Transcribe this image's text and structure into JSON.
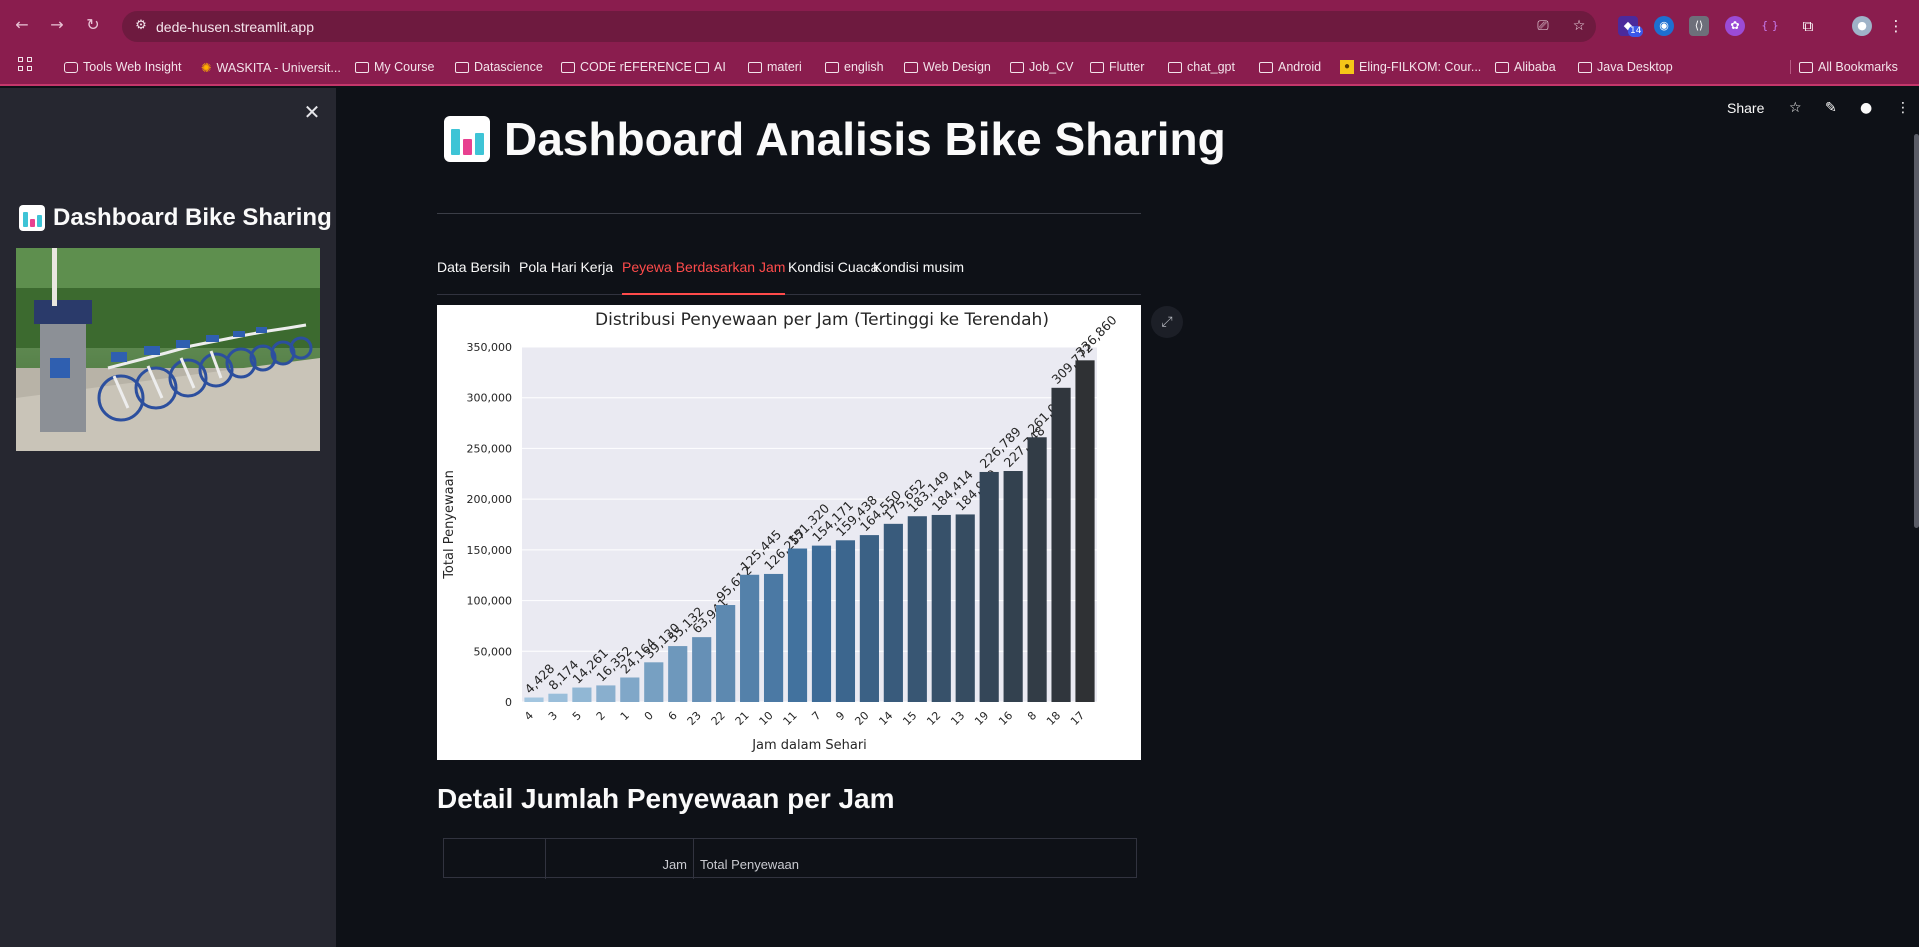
{
  "browser": {
    "url": "dede-husen.streamlit.app",
    "extension_badge": "14",
    "bookmarks": [
      {
        "label": "Tools Web Insight",
        "kind": "page"
      },
      {
        "label": "WASKITA - Universit...",
        "kind": "page"
      },
      {
        "label": "My Course",
        "kind": "folder"
      },
      {
        "label": "Datascience",
        "kind": "folder"
      },
      {
        "label": "CODE rEFERENCE",
        "kind": "folder"
      },
      {
        "label": "AI",
        "kind": "folder"
      },
      {
        "label": "materi",
        "kind": "folder"
      },
      {
        "label": "english",
        "kind": "folder"
      },
      {
        "label": "Web Design",
        "kind": "folder"
      },
      {
        "label": "Job_CV",
        "kind": "folder"
      },
      {
        "label": "Flutter",
        "kind": "folder"
      },
      {
        "label": "chat_gpt",
        "kind": "folder"
      },
      {
        "label": "Android",
        "kind": "folder"
      },
      {
        "label": "Eling-FILKOM: Cour...",
        "kind": "page"
      },
      {
        "label": "Alibaba",
        "kind": "folder"
      },
      {
        "label": "Java Desktop",
        "kind": "folder"
      }
    ],
    "all_bookmarks": "All Bookmarks"
  },
  "sidebar": {
    "title": "Dashboard Bike Sharing",
    "image": "bike-sharing-station-photo"
  },
  "toolbar": {
    "share": "Share"
  },
  "main": {
    "title": "Dashboard Analisis Bike Sharing",
    "tabs": [
      {
        "label": "Data Bersih",
        "active": false
      },
      {
        "label": "Pola Hari Kerja",
        "active": false
      },
      {
        "label": "Peyewa Berdasarkan Jam",
        "active": true
      },
      {
        "label": "Kondisi Cuaca",
        "active": false
      },
      {
        "label": "Kondisi musim",
        "active": false
      }
    ],
    "section_title": "Detail Jumlah Penyewaan per Jam",
    "table_headers": [
      "",
      "Jam",
      "Total Penyewaan"
    ]
  },
  "colors": {
    "chrome": "#8a1d4e",
    "accent": "#ff4b4b",
    "sidebar_bg": "#262730",
    "main_bg": "#0e1117",
    "bar_light": "#a3c6e0",
    "bar_dark": "#2f3134"
  },
  "chart_data": {
    "type": "bar",
    "title": "Distribusi Penyewaan per Jam (Tertinggi ke Terendah)",
    "xlabel": "Jam dalam Sehari",
    "ylabel": "Total Penyewaan",
    "ylim": [
      0,
      350000
    ],
    "yticks": [
      "0",
      "50,000",
      "100,000",
      "150,000",
      "200,000",
      "250,000",
      "300,000",
      "350,000"
    ],
    "grid": true,
    "categories": [
      "4",
      "3",
      "5",
      "2",
      "1",
      "0",
      "6",
      "23",
      "22",
      "21",
      "10",
      "11",
      "7",
      "9",
      "20",
      "14",
      "15",
      "12",
      "13",
      "19",
      "16",
      "8",
      "18",
      "17"
    ],
    "values": [
      4428,
      8174,
      14261,
      16352,
      24164,
      39130,
      55132,
      63941,
      95612,
      125445,
      126257,
      151320,
      154171,
      159438,
      164550,
      175652,
      183149,
      184414,
      184919,
      226789,
      227748,
      261001,
      309772,
      336860
    ],
    "labels": [
      "4,428",
      "8,174",
      "14,261",
      "16,352",
      "24,164",
      "39,130",
      "55,132",
      "63,941",
      "95,612",
      "125,445",
      "126,257",
      "151,320",
      "154,171",
      "159,438",
      "164,550",
      "175,652",
      "183,149",
      "184,414",
      "184,919",
      "226,789",
      "227,748",
      "261,001",
      "309,772",
      "336,860"
    ]
  }
}
